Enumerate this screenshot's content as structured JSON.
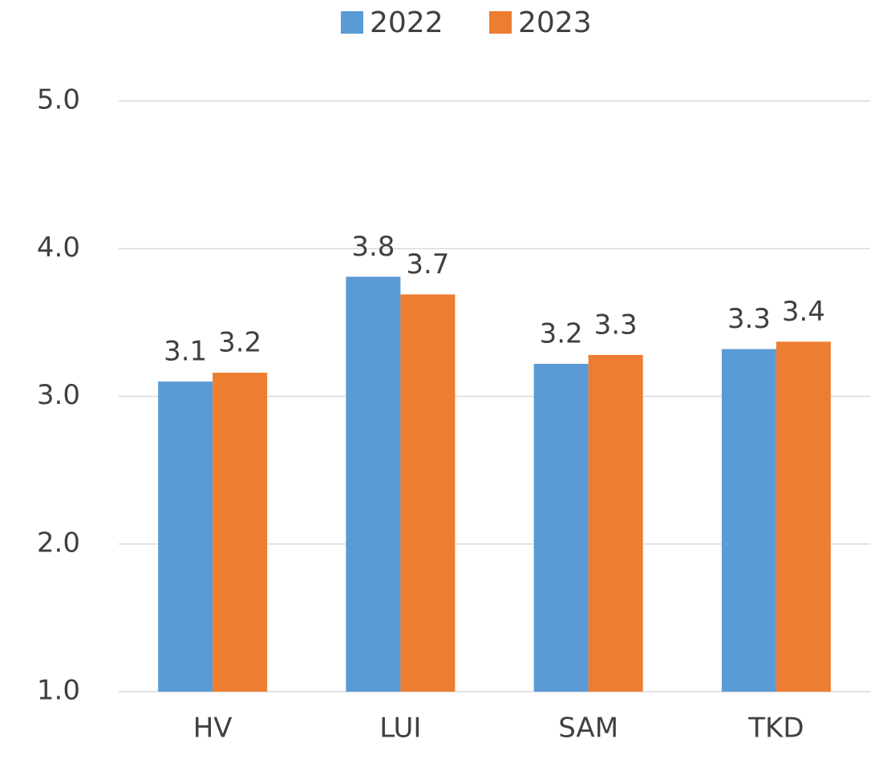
{
  "chart_data": {
    "type": "bar",
    "categories": [
      "HV",
      "LUI",
      "SAM",
      "TKD"
    ],
    "series": [
      {
        "name": "2022",
        "color": "#5b9bd5",
        "values": [
          3.1,
          3.81,
          3.22,
          3.32
        ],
        "value_labels": [
          "3.1",
          "3.8",
          "3.2",
          "3.3"
        ]
      },
      {
        "name": "2023",
        "color": "#ed7d31",
        "values": [
          3.16,
          3.69,
          3.28,
          3.37
        ],
        "value_labels": [
          "3.2",
          "3.7",
          "3.3",
          "3.4"
        ]
      }
    ],
    "ylim": [
      1,
      5
    ],
    "yticks": [
      {
        "value": 1,
        "label": "1.0"
      },
      {
        "value": 2,
        "label": "2.0"
      },
      {
        "value": 3,
        "label": "3.0"
      },
      {
        "value": 4,
        "label": "4.0"
      },
      {
        "value": 5,
        "label": "5.0"
      }
    ],
    "grid": true,
    "legend": "top"
  }
}
